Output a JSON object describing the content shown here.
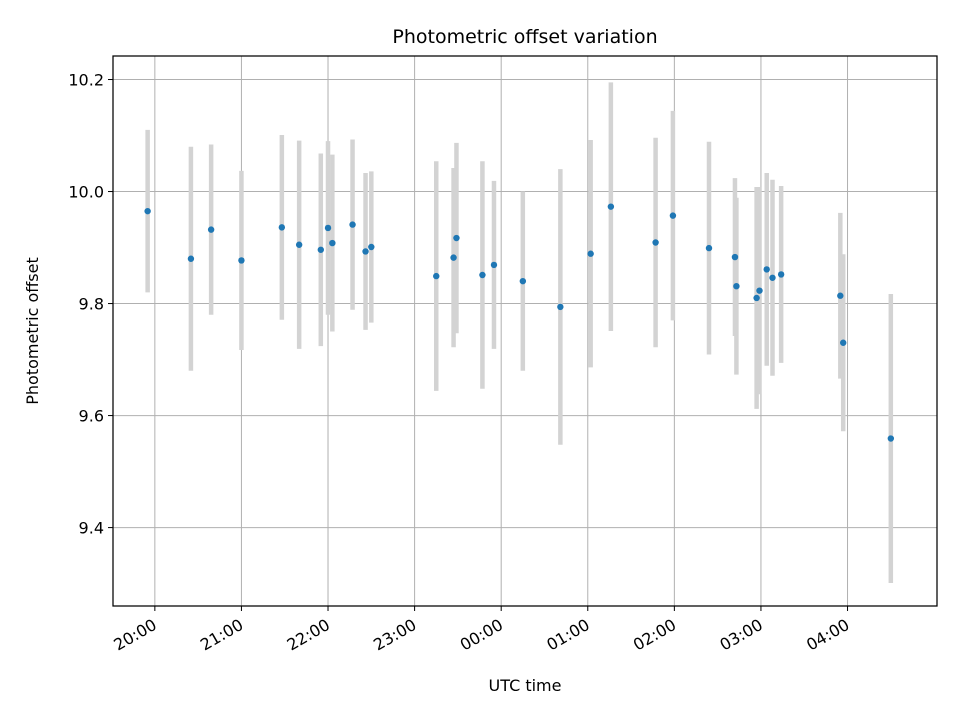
{
  "chart_data": {
    "type": "scatter",
    "title": "Photometric offset variation",
    "xlabel": "UTC time",
    "ylabel": "Photometric offset",
    "x_ticks": [
      "20:00",
      "21:00",
      "22:00",
      "23:00",
      "00:00",
      "01:00",
      "02:00",
      "03:00",
      "04:00"
    ],
    "y_ticks": [
      "9.4",
      "9.6",
      "9.8",
      "10.0",
      "10.2"
    ],
    "y_tick_values": [
      9.4,
      9.6,
      9.8,
      10.0,
      10.2
    ],
    "ylim": [
      9.26,
      10.242
    ],
    "xlim": [
      "19:31",
      "05:02"
    ],
    "grid": true,
    "colors": {
      "point": "#1f77b4",
      "errorbar": "#d3d3d3",
      "grid": "#b0b0b0"
    },
    "series": [
      {
        "x": [
          "19:55",
          "20:25",
          "20:39",
          "21:00",
          "21:28",
          "21:40",
          "21:55",
          "22:00",
          "22:03",
          "22:17",
          "22:26",
          "22:30",
          "23:15",
          "23:27",
          "23:29",
          "23:47",
          "23:55",
          "00:15",
          "00:41",
          "01:02",
          "01:16",
          "01:47",
          "01:59",
          "02:24",
          "02:42",
          "02:43",
          "02:57",
          "02:59",
          "03:04",
          "03:08",
          "03:14",
          "03:55",
          "03:57",
          "04:30"
        ],
        "y": [
          9.965,
          9.88,
          9.932,
          9.877,
          9.936,
          9.905,
          9.896,
          9.935,
          9.908,
          9.941,
          9.893,
          9.901,
          9.849,
          9.882,
          9.917,
          9.851,
          9.869,
          9.84,
          9.794,
          9.889,
          9.973,
          9.909,
          9.957,
          9.899,
          9.883,
          9.831,
          9.81,
          9.823,
          9.861,
          9.846,
          9.852,
          9.814,
          9.73,
          9.559
        ],
        "yerr": [
          0.145,
          0.2,
          0.152,
          0.16,
          0.165,
          0.186,
          0.172,
          0.155,
          0.158,
          0.152,
          0.14,
          0.135,
          0.205,
          0.16,
          0.17,
          0.203,
          0.15,
          0.16,
          0.246,
          0.203,
          0.222,
          0.187,
          0.187,
          0.19,
          0.141,
          0.158,
          0.198,
          0.185,
          0.172,
          0.175,
          0.158,
          0.148,
          0.158,
          0.258
        ]
      }
    ]
  }
}
